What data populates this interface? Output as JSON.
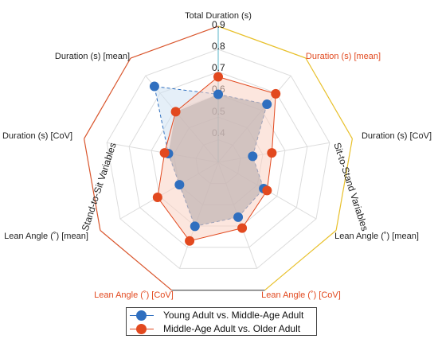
{
  "chart_data": {
    "type": "radar",
    "axes": [
      {
        "label": "Total Duration (s)",
        "color": "#222222"
      },
      {
        "label": "Duration (s) [mean]",
        "color": "#e2491f"
      },
      {
        "label": "Duration (s) [CoV]",
        "color": "#222222"
      },
      {
        "label": "Lean Angle (˚) [mean]",
        "color": "#222222"
      },
      {
        "label": "Lean Angle (˚) [CoV]",
        "color": "#e2491f"
      },
      {
        "label": "Lean Angle (˚) [CoV]",
        "color": "#e2491f"
      },
      {
        "label": "Lean Angle (˚) [mean]",
        "color": "#222222"
      },
      {
        "label": "Duration (s) [CoV]",
        "color": "#222222"
      },
      {
        "label": "Duration (s) [mean]",
        "color": "#222222"
      }
    ],
    "ticks": [
      "0.4",
      "0.5",
      "0.6",
      "0.7",
      "0.8",
      "0.9"
    ],
    "range": [
      0.2,
      0.9
    ],
    "groups": [
      {
        "label": "Sit-to-Stand Variables",
        "color": "#e8c02a"
      },
      {
        "label": "Stand-to-Sit Variables",
        "color": "#d9552c"
      }
    ],
    "top_axis_color": "#5ab4c8",
    "series": [
      {
        "name": "Young Adult vs. Middle-Age Adult",
        "color": "#2f6fbf",
        "fill": "#cfe1f3",
        "dashed": true,
        "values": [
          0.55,
          0.59,
          0.38,
          0.47,
          0.5,
          0.55,
          0.43,
          0.46,
          0.71
        ]
      },
      {
        "name": "Middle-Age Adult vs. Older Adult",
        "color": "#e2491f",
        "fill": "#f9d2c3",
        "dashed": false,
        "values": [
          0.64,
          0.66,
          0.48,
          0.49,
          0.56,
          0.63,
          0.56,
          0.48,
          0.54
        ]
      }
    ]
  }
}
